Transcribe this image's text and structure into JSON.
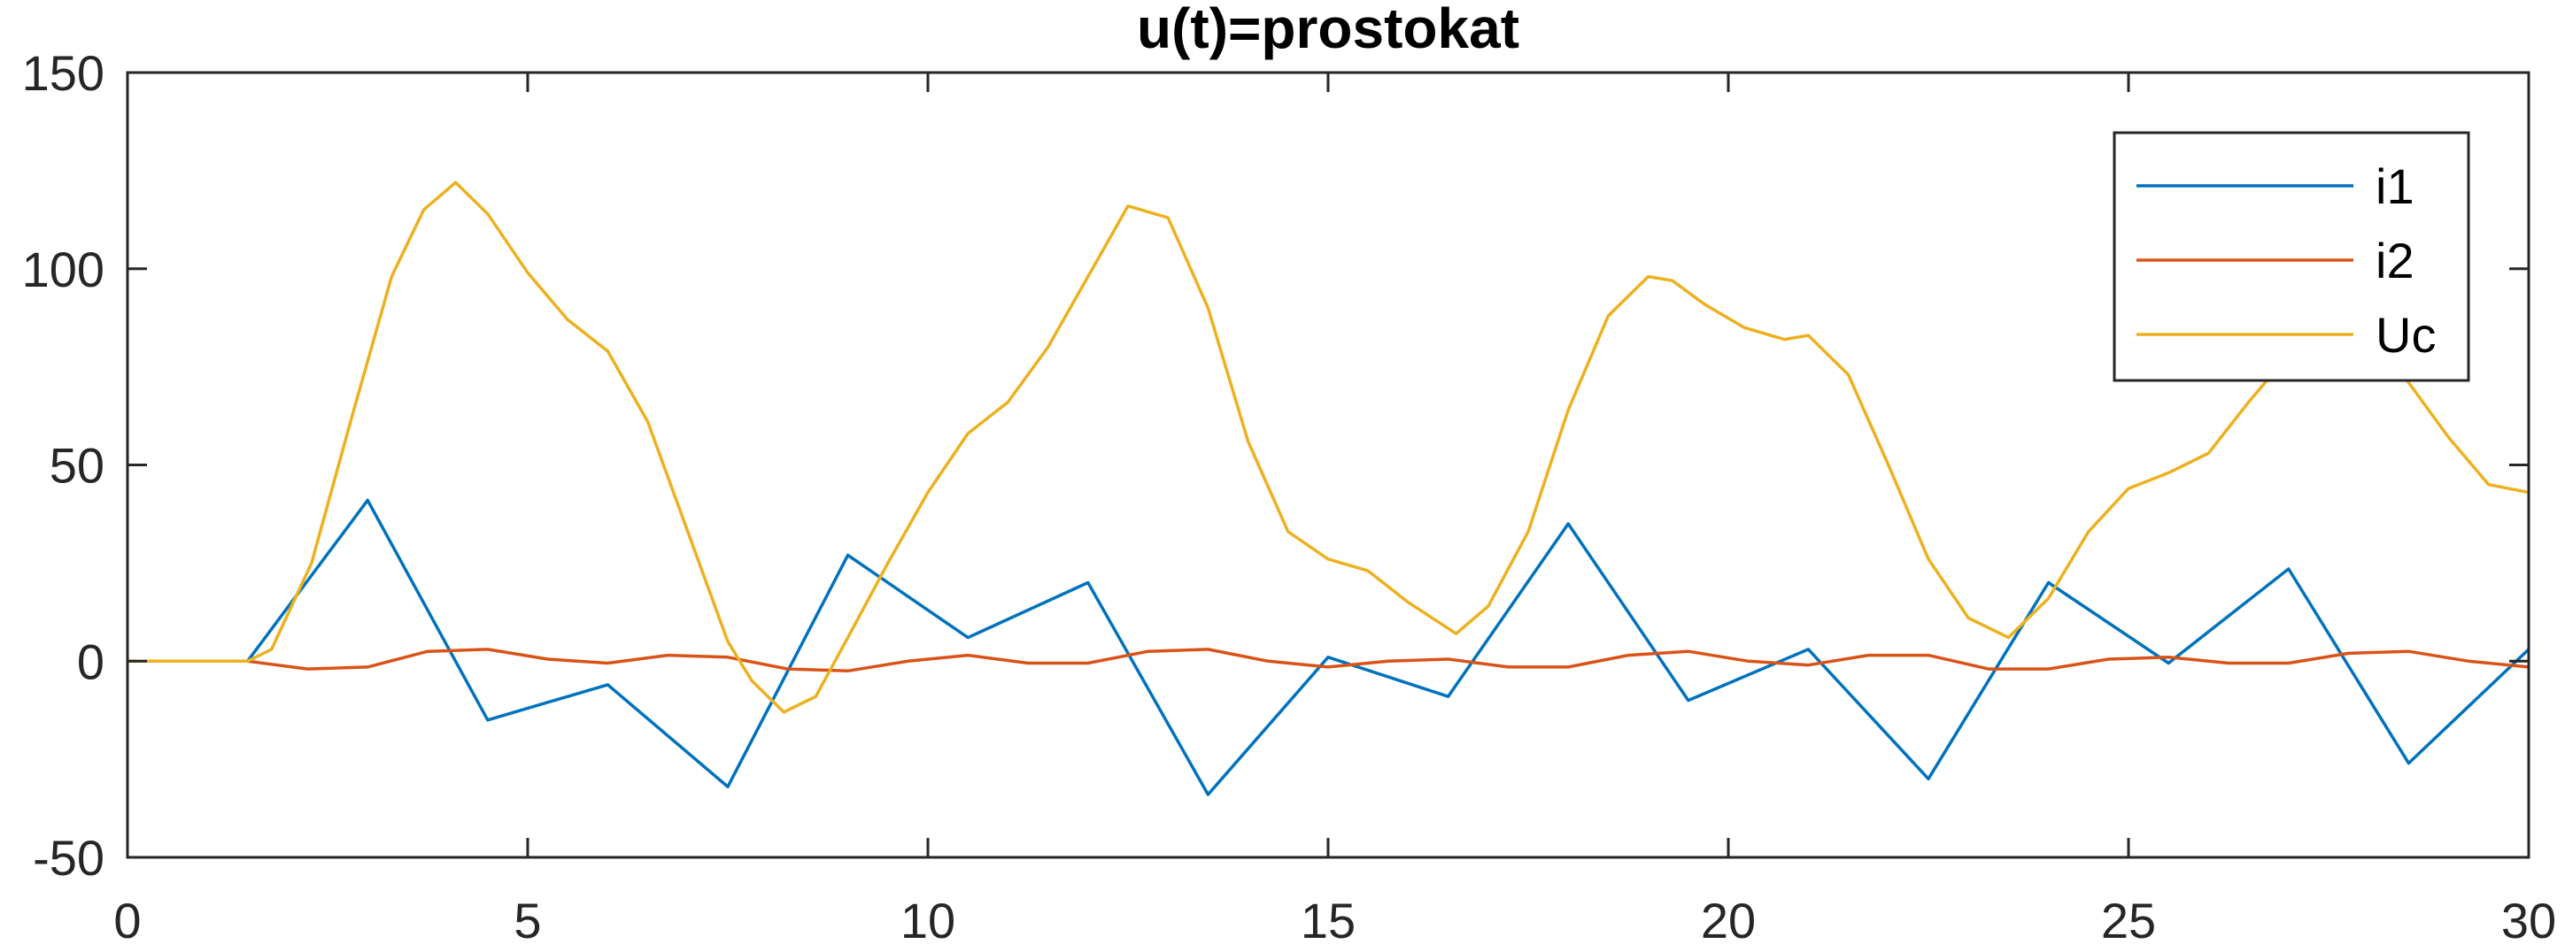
{
  "chart_data": {
    "type": "line",
    "title": "u(t)=prostokat",
    "xlabel": "",
    "ylabel": "",
    "xlim": [
      0,
      30
    ],
    "ylim": [
      -50,
      150
    ],
    "xticks": [
      0,
      5,
      10,
      15,
      20,
      25,
      30
    ],
    "yticks": [
      -50,
      0,
      50,
      100,
      150
    ],
    "xtick_labels": [
      "0",
      "5",
      "10",
      "15",
      "20",
      "25",
      "30"
    ],
    "ytick_labels": [
      "-50",
      "0",
      "50",
      "100",
      "150"
    ],
    "grid": false,
    "legend_position": "top-right",
    "series": [
      {
        "name": "i1",
        "color": "#0072BD",
        "x": [
          0,
          1.5,
          3,
          4.5,
          6,
          7.5,
          9,
          10.5,
          12,
          13.5,
          15,
          16.5,
          18,
          19.5,
          21,
          22.5,
          24,
          25.5,
          27,
          28.5,
          30
        ],
        "y": [
          0,
          0,
          41,
          -15,
          -6,
          -32,
          27,
          6,
          20,
          -34,
          1,
          -9,
          35,
          -10,
          3,
          -30,
          20,
          -0.5,
          23.5,
          -26,
          3
        ]
      },
      {
        "name": "i2",
        "color": "#D95319",
        "x": [
          0,
          1.5,
          2.25,
          3,
          3.75,
          4.5,
          5.25,
          6,
          6.75,
          7.5,
          8.25,
          9,
          9.75,
          10.5,
          11.25,
          12,
          12.75,
          13.5,
          14.25,
          15,
          15.75,
          16.5,
          17.25,
          18,
          18.75,
          19.5,
          20.25,
          21,
          21.75,
          22.5,
          23.25,
          24,
          24.75,
          25.5,
          26.25,
          27,
          27.75,
          28.5,
          29.25,
          30
        ],
        "y": [
          0,
          0,
          -2,
          -1.5,
          2.5,
          3,
          0.5,
          -0.5,
          1.5,
          1,
          -2,
          -2.5,
          0,
          1.5,
          -0.5,
          -0.5,
          2.5,
          3,
          0,
          -1.5,
          0,
          0.5,
          -1.5,
          -1.5,
          1.5,
          2.5,
          0,
          -1,
          1.5,
          1.5,
          -2,
          -2,
          0.5,
          1,
          -0.5,
          -0.5,
          2,
          2.5,
          0,
          -1.5
        ]
      },
      {
        "name": "Uc",
        "color": "#EDB120",
        "x": [
          0,
          1.5,
          1.8,
          2.3,
          2.8,
          3.3,
          3.7,
          4.1,
          4.5,
          5.0,
          5.5,
          6.0,
          6.5,
          7.0,
          7.5,
          7.8,
          8.2,
          8.6,
          9.0,
          9.5,
          10.0,
          10.5,
          11.0,
          11.5,
          12.0,
          12.5,
          13.0,
          13.5,
          14.0,
          14.5,
          15.0,
          15.5,
          16.0,
          16.6,
          17.0,
          17.5,
          18.0,
          18.5,
          19.0,
          19.3,
          19.7,
          20.2,
          20.7,
          21.0,
          21.5,
          22.0,
          22.5,
          23.0,
          23.5,
          24.0,
          24.5,
          25.0,
          25.5,
          26.0,
          26.5,
          27.0,
          27.5,
          28.0,
          28.5,
          29.0,
          29.5,
          30.0
        ],
        "y": [
          0,
          0,
          3,
          25,
          62,
          98,
          115,
          122,
          114,
          99,
          87,
          79,
          61,
          33,
          5,
          -5,
          -13,
          -9,
          6,
          25,
          43,
          58,
          66,
          80,
          98,
          116,
          113,
          90,
          56,
          33,
          26,
          23,
          15,
          7,
          14,
          33,
          64,
          88,
          98,
          97,
          91,
          85,
          82,
          83,
          73,
          50,
          26,
          11,
          6,
          16,
          33,
          44,
          48,
          53,
          66,
          78,
          84,
          81,
          71,
          57,
          45,
          43
        ]
      }
    ]
  }
}
